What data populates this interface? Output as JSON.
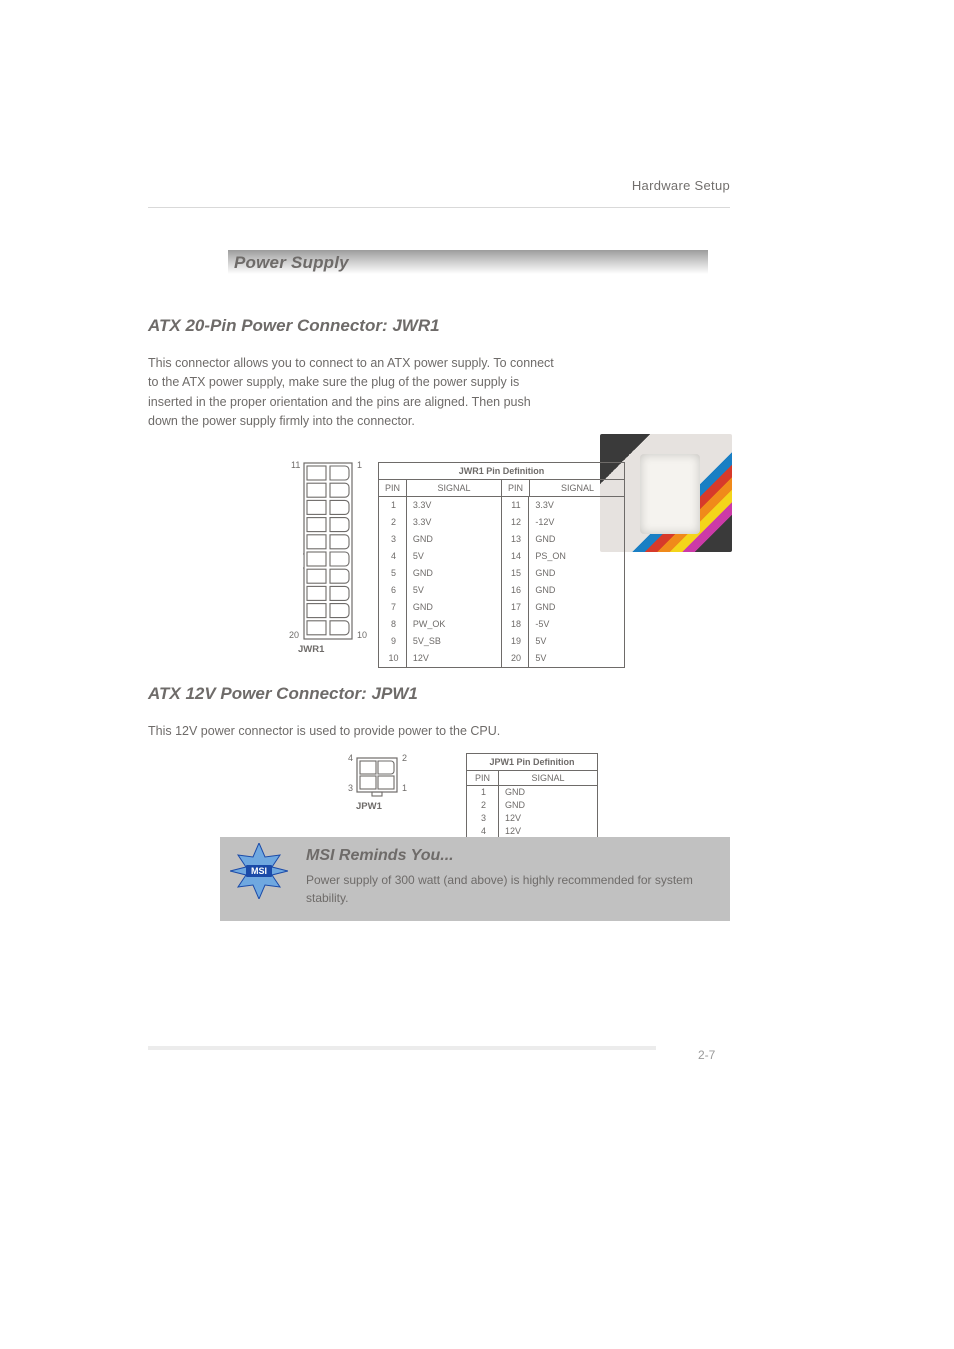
{
  "header": {
    "chapter": "Hardware Setup"
  },
  "banner": {
    "title": "Power Supply"
  },
  "atx": {
    "heading": "ATX 20-Pin Power Connector: JWR1",
    "body": "This connector allows you to connect to an ATX power supply. To connect to the ATX power supply, make sure the plug of the power supply is inserted in the proper orientation and the pins are aligned. Then push down the power supply firmly into the connector.",
    "diagram_label": "JWR1",
    "corner_labels": {
      "tl": "11",
      "tr": "1",
      "bl": "20",
      "br": "10"
    },
    "table": {
      "title": "JWR1 Pin Definition",
      "head": [
        "PIN",
        "SIGNAL",
        "PIN",
        "SIGNAL"
      ],
      "left_pins": [
        "1",
        "2",
        "3",
        "4",
        "5",
        "6",
        "7",
        "8",
        "9",
        "10"
      ],
      "left_sigs": [
        "3.3V",
        "3.3V",
        "GND",
        "5V",
        "GND",
        "5V",
        "GND",
        "PW_OK",
        "5V_SB",
        "12V"
      ],
      "right_pins": [
        "11",
        "12",
        "13",
        "14",
        "15",
        "16",
        "17",
        "18",
        "19",
        "20"
      ],
      "right_sigs": [
        "3.3V",
        "-12V",
        "GND",
        "PS_ON",
        "GND",
        "GND",
        "GND",
        "-5V",
        "5V",
        "5V"
      ]
    }
  },
  "jpw": {
    "heading": "ATX 12V Power Connector: JPW1",
    "body": "This 12V power connector is used to provide power to the CPU.",
    "diagram_label": "JPW1",
    "corner_labels": {
      "tl": "4",
      "tr": "2",
      "bl": "3",
      "br": "1"
    },
    "table": {
      "title": "JPW1 Pin Definition",
      "head": [
        "PIN",
        "SIGNAL"
      ],
      "rows": [
        [
          "1",
          "GND"
        ],
        [
          "2",
          "GND"
        ],
        [
          "3",
          "12V"
        ],
        [
          "4",
          "12V"
        ]
      ]
    }
  },
  "note": {
    "title": "MSI Reminds You...",
    "text": "Power supply of 300 watt (and above) is highly recommended for system stability."
  },
  "page_number": "2-7",
  "colors": {
    "text": "#6e6b69",
    "rule": "#d9d9d9",
    "note_bg": "#c1c1c1",
    "msi_blue": "#1a4aa8"
  }
}
